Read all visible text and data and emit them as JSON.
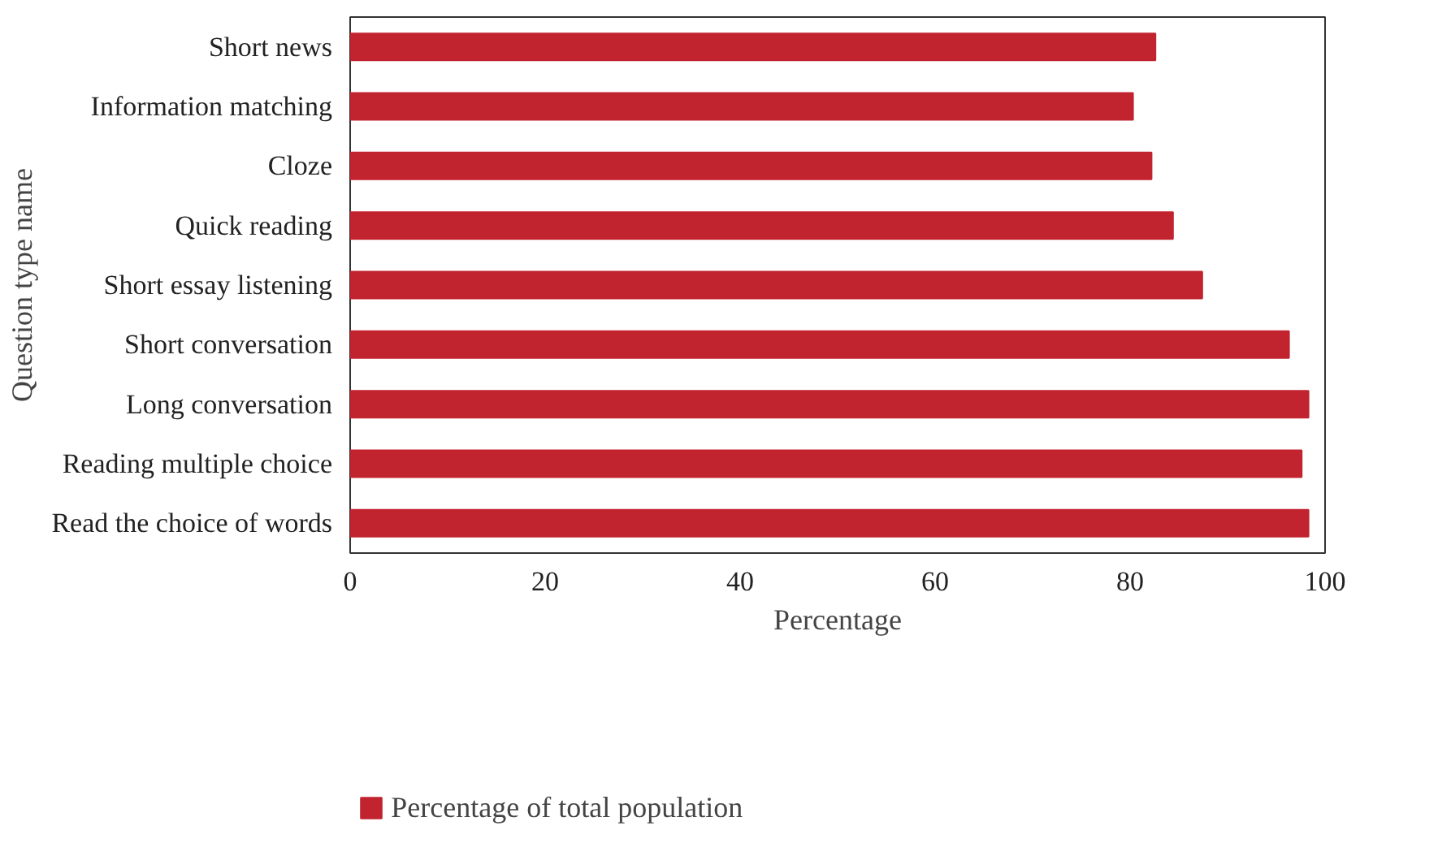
{
  "chart_data": {
    "type": "bar",
    "orientation": "horizontal",
    "xlabel": "Percentage",
    "ylabel": "Question type name",
    "categories": [
      "Short news",
      "Information matching",
      "Cloze",
      "Quick reading",
      "Short essay listening",
      "Short conversation",
      "Long conversation",
      "Reading multiple choice",
      "Read the choice of words"
    ],
    "series": [
      {
        "name": "Percentage of total population",
        "color": "#c1232f",
        "values": [
          82.6,
          80.3,
          82.2,
          84.4,
          87.4,
          96.3,
          98.3,
          97.6,
          98.3
        ]
      }
    ],
    "xlim": [
      0,
      100
    ],
    "xticks": [
      0,
      20,
      40,
      60,
      80,
      100
    ],
    "grid": false,
    "legend": "bottom"
  }
}
